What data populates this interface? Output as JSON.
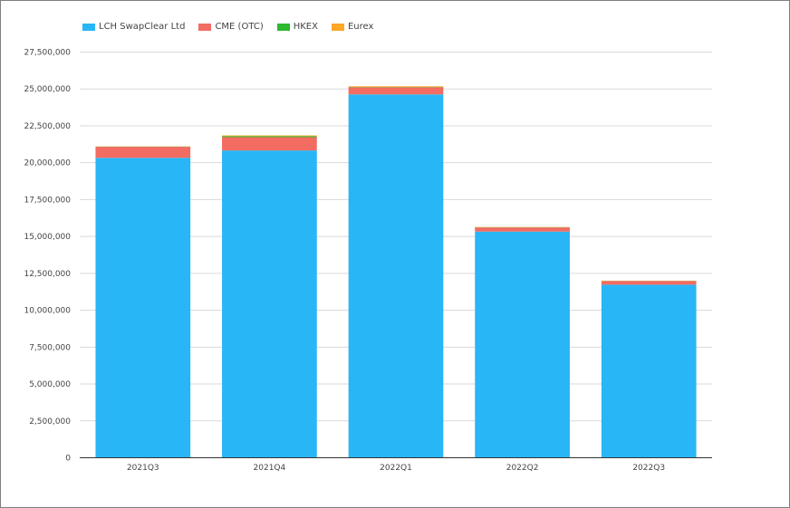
{
  "colors": {
    "grid": "#d9d9d9",
    "axis": "#333333",
    "LCH SwapClear Ltd": "#29b6f6",
    "CME (OTC)": "#f26c62",
    "HKEX": "#2eb82e",
    "Eurex": "#ffa726"
  },
  "legend": [
    {
      "label": "LCH SwapClear Ltd",
      "color": "#29b6f6"
    },
    {
      "label": "CME (OTC)",
      "color": "#f26c62"
    },
    {
      "label": "HKEX",
      "color": "#2eb82e"
    },
    {
      "label": "Eurex",
      "color": "#ffa726"
    }
  ],
  "chart_data": {
    "type": "bar",
    "stacked": true,
    "categories": [
      "2021Q3",
      "2021Q4",
      "2022Q1",
      "2022Q2",
      "2022Q3"
    ],
    "series": [
      {
        "name": "LCH SwapClear Ltd",
        "values": [
          20300000,
          20800000,
          24600000,
          15300000,
          11700000
        ]
      },
      {
        "name": "CME (OTC)",
        "values": [
          750000,
          900000,
          480000,
          280000,
          250000
        ]
      },
      {
        "name": "HKEX",
        "values": [
          15000,
          70000,
          20000,
          10000,
          10000
        ]
      },
      {
        "name": "Eurex",
        "values": [
          10000,
          50000,
          50000,
          20000,
          15000
        ]
      }
    ],
    "ylim": [
      0,
      27500000
    ],
    "yticks": [
      0,
      2500000,
      5000000,
      7500000,
      10000000,
      12500000,
      15000000,
      17500000,
      20000000,
      22500000,
      25000000,
      27500000
    ],
    "ytick_labels": [
      "0",
      "2,500,000",
      "5,000,000",
      "7,500,000",
      "10,000,000",
      "12,500,000",
      "15,000,000",
      "17,500,000",
      "20,000,000",
      "22,500,000",
      "25,000,000",
      "27,500,000"
    ],
    "grid": true,
    "legend_position": "top-left",
    "title": "",
    "xlabel": "",
    "ylabel": ""
  }
}
